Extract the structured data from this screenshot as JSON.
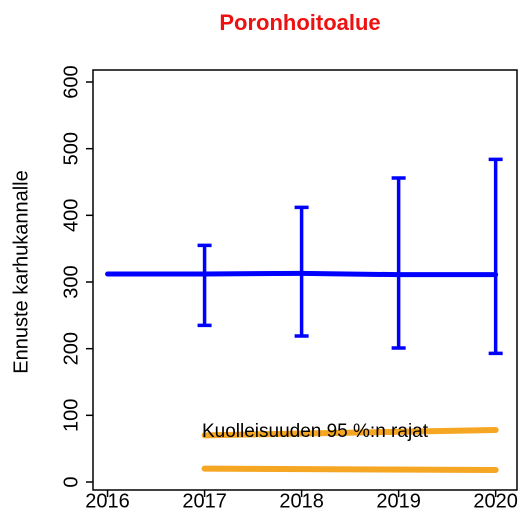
{
  "chart_data": {
    "type": "line",
    "title": "Poronhoitoalue",
    "ylabel": "Ennuste karhukannalle",
    "xlim": [
      2015.85,
      2020.22
    ],
    "ylim": [
      -12,
      618
    ],
    "xticks": [
      2016,
      2017,
      2018,
      2019,
      2020
    ],
    "yticks": [
      0,
      100,
      200,
      300,
      400,
      500,
      600
    ],
    "series": [
      {
        "color": "#0000ff",
        "x": [
          2016,
          2017,
          2018,
          2019,
          2020
        ],
        "values": [
          312,
          312,
          313,
          311,
          311
        ],
        "error_low": [
          null,
          235,
          219,
          201,
          193
        ],
        "error_high": [
          null,
          355,
          412,
          456,
          484
        ]
      },
      {
        "color": "#f5a623",
        "x": [
          2017,
          2020
        ],
        "values": [
          70,
          78
        ]
      },
      {
        "color": "#f5a623",
        "x": [
          2017,
          2020
        ],
        "values": [
          20,
          18
        ]
      }
    ],
    "annotations": [
      "Kuolleisuuden 95 %:n rajat"
    ]
  }
}
